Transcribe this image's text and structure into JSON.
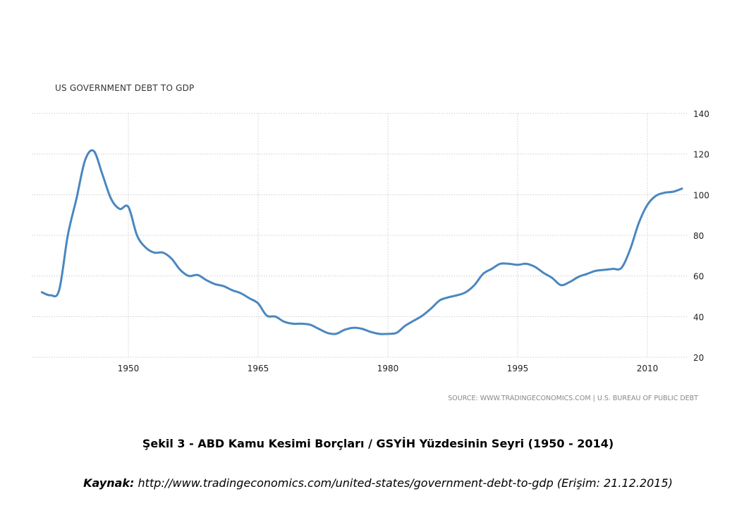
{
  "chart_data": {
    "type": "line",
    "title": "US GOVERNMENT DEBT TO GDP",
    "xlabel": "",
    "ylabel": "",
    "xlim": [
      1940,
      2014
    ],
    "ylim": [
      20,
      140
    ],
    "x_ticks": [
      1950,
      1965,
      1980,
      1995,
      2010
    ],
    "y_ticks": [
      20,
      40,
      60,
      80,
      100,
      120,
      140
    ],
    "grid": true,
    "y_axis_side": "right",
    "line_color": "#4a87c0",
    "source": "SOURCE: WWW.TRADINGECONOMICS.COM | U.S. BUREAU OF PUBLIC DEBT",
    "series": [
      {
        "name": "US Government Debt to GDP",
        "x": [
          1940,
          1941,
          1942,
          1943,
          1944,
          1945,
          1946,
          1947,
          1948,
          1949,
          1950,
          1951,
          1952,
          1953,
          1954,
          1955,
          1956,
          1957,
          1958,
          1959,
          1960,
          1961,
          1962,
          1963,
          1964,
          1965,
          1966,
          1967,
          1968,
          1969,
          1970,
          1971,
          1972,
          1973,
          1974,
          1975,
          1976,
          1977,
          1978,
          1979,
          1980,
          1981,
          1982,
          1983,
          1984,
          1985,
          1986,
          1987,
          1988,
          1989,
          1990,
          1991,
          1992,
          1993,
          1994,
          1995,
          1996,
          1997,
          1998,
          1999,
          2000,
          2001,
          2002,
          2003,
          2004,
          2005,
          2006,
          2007,
          2008,
          2009,
          2010,
          2011,
          2012,
          2013,
          2014
        ],
        "values": [
          52,
          50.5,
          53,
          80,
          98,
          117,
          121.5,
          110,
          98,
          93,
          94,
          80,
          74,
          71.5,
          71.5,
          68.5,
          63,
          60,
          60.5,
          58,
          56,
          55,
          53,
          51.5,
          49,
          46.5,
          40.5,
          40,
          37.5,
          36.5,
          36.5,
          36,
          34,
          32,
          31.5,
          33.5,
          34.5,
          34,
          32.5,
          31.5,
          31.5,
          32,
          35.5,
          38,
          40.5,
          44,
          48,
          49.5,
          50.5,
          52,
          55.5,
          61,
          63.5,
          66,
          66,
          65.5,
          66,
          64.5,
          61.5,
          59,
          55.5,
          57,
          59.5,
          61,
          62.5,
          63,
          63.5,
          64,
          73,
          86,
          95,
          99.5,
          101,
          101.5,
          103
        ]
      }
    ]
  },
  "caption": "Şekil 3 - ABD Kamu Kesimi Borçları / GSYİH Yüzdesinin Seyri (1950 - 2014)",
  "source_label": "Kaynak:",
  "source_text": " http://www.tradingeconomics.com/united-states/government-debt-to-gdp (Erişim: 21.12.2015)"
}
